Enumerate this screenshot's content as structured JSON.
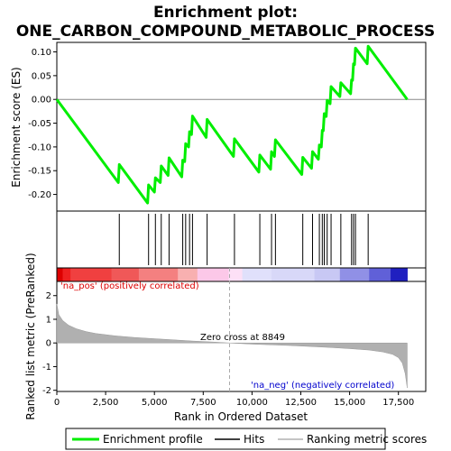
{
  "chart_data": {
    "type": "line",
    "title_line1": "Enrichment plot:",
    "title_line2": "ONE_CARBON_COMPOUND_METABOLIC_PROCESS",
    "es_ylabel": "Enrichment score (ES)",
    "rank_ylabel": "Ranked list metric (PreRanked)",
    "xlabel": "Rank in Ordered Dataset",
    "xlim": [
      0,
      18900
    ],
    "es_ylim": [
      -0.235,
      0.12
    ],
    "rank_ylim": [
      -2.05,
      2.6
    ],
    "x_ticks": [
      0,
      2500,
      5000,
      7500,
      10000,
      12500,
      15000,
      17500
    ],
    "x_tick_labels": [
      "0",
      "2,500",
      "5,000",
      "7,500",
      "10,000",
      "12,500",
      "15,000",
      "17,500"
    ],
    "es_ticks": [
      0.1,
      0.05,
      0.0,
      -0.05,
      -0.1,
      -0.15,
      -0.2
    ],
    "es_tick_labels": [
      "0.10",
      "0.05",
      "0.00",
      "-0.05",
      "-0.10",
      "-0.15",
      "-0.20"
    ],
    "rank_ticks": [
      2,
      1,
      0,
      -1,
      -2
    ],
    "rank_tick_labels": [
      "2",
      "1",
      "0",
      "-1",
      "-2"
    ],
    "hits": [
      3200,
      4700,
      5050,
      5350,
      5750,
      6450,
      6600,
      6800,
      6950,
      7700,
      9100,
      10400,
      11000,
      11200,
      12600,
      13100,
      13450,
      13600,
      13700,
      13850,
      14050,
      14550,
      15100,
      15200,
      15300,
      15950
    ],
    "es_points": [
      [
        0,
        0.0
      ],
      [
        3150,
        -0.175
      ],
      [
        3200,
        -0.137
      ],
      [
        4650,
        -0.218
      ],
      [
        4700,
        -0.18
      ],
      [
        5000,
        -0.195
      ],
      [
        5050,
        -0.165
      ],
      [
        5300,
        -0.175
      ],
      [
        5350,
        -0.14
      ],
      [
        5700,
        -0.16
      ],
      [
        5750,
        -0.123
      ],
      [
        6400,
        -0.163
      ],
      [
        6450,
        -0.128
      ],
      [
        6550,
        -0.131
      ],
      [
        6600,
        -0.093
      ],
      [
        6750,
        -0.1
      ],
      [
        6800,
        -0.068
      ],
      [
        6900,
        -0.074
      ],
      [
        6950,
        -0.035
      ],
      [
        7650,
        -0.08
      ],
      [
        7700,
        -0.042
      ],
      [
        9050,
        -0.12
      ],
      [
        9100,
        -0.083
      ],
      [
        10350,
        -0.153
      ],
      [
        10400,
        -0.117
      ],
      [
        10950,
        -0.147
      ],
      [
        11000,
        -0.11
      ],
      [
        11150,
        -0.12
      ],
      [
        11200,
        -0.085
      ],
      [
        12550,
        -0.158
      ],
      [
        12600,
        -0.122
      ],
      [
        13050,
        -0.145
      ],
      [
        13100,
        -0.11
      ],
      [
        13400,
        -0.126
      ],
      [
        13450,
        -0.096
      ],
      [
        13550,
        -0.1
      ],
      [
        13600,
        -0.065
      ],
      [
        13650,
        -0.066
      ],
      [
        13700,
        -0.03
      ],
      [
        13800,
        -0.036
      ],
      [
        13850,
        -0.002
      ],
      [
        14000,
        -0.009
      ],
      [
        14050,
        0.027
      ],
      [
        14500,
        0.006
      ],
      [
        14550,
        0.035
      ],
      [
        15050,
        0.012
      ],
      [
        15100,
        0.041
      ],
      [
        15150,
        0.04
      ],
      [
        15200,
        0.075
      ],
      [
        15250,
        0.073
      ],
      [
        15300,
        0.108
      ],
      [
        15900,
        0.075
      ],
      [
        15950,
        0.112
      ],
      [
        17950,
        0.0
      ]
    ],
    "rank_curve": [
      [
        0,
        1.65
      ],
      [
        100,
        1.2
      ],
      [
        300,
        0.95
      ],
      [
        600,
        0.75
      ],
      [
        1000,
        0.6
      ],
      [
        1500,
        0.48
      ],
      [
        2000,
        0.4
      ],
      [
        3000,
        0.3
      ],
      [
        4000,
        0.23
      ],
      [
        5000,
        0.18
      ],
      [
        6000,
        0.13
      ],
      [
        7000,
        0.08
      ],
      [
        8000,
        0.04
      ],
      [
        8849,
        0.0
      ],
      [
        10000,
        -0.05
      ],
      [
        11000,
        -0.08
      ],
      [
        12000,
        -0.11
      ],
      [
        13000,
        -0.15
      ],
      [
        14000,
        -0.19
      ],
      [
        15000,
        -0.24
      ],
      [
        16000,
        -0.3
      ],
      [
        16700,
        -0.38
      ],
      [
        17200,
        -0.48
      ],
      [
        17500,
        -0.62
      ],
      [
        17700,
        -0.85
      ],
      [
        17850,
        -1.3
      ],
      [
        17950,
        -1.9
      ]
    ],
    "zero_cross_rank": 8849,
    "zero_cross_label": "Zero cross at 8849",
    "pos_label": "'na_pos' (positively correlated)",
    "neg_label": "'na_neg' (negatively correlated)",
    "legend": {
      "placement": "bottom",
      "enrichment_label": "Enrichment profile",
      "hits_label": "Hits",
      "ranking_label": "Ranking metric scores"
    },
    "colors": {
      "enrichment": "#00ee00",
      "hits": "#000000",
      "ranking": "#b0b0b0",
      "pos_label": "#dd0000",
      "neg_label": "#0000cc",
      "zero_line": "#aaaaaa"
    },
    "heatmap_stops": [
      [
        0,
        "#dd0000"
      ],
      [
        300,
        "#ee2020"
      ],
      [
        700,
        "#f04040"
      ],
      [
        2800,
        "#f05858"
      ],
      [
        4200,
        "#f48080"
      ],
      [
        6200,
        "#f8b0b0"
      ],
      [
        7200,
        "#fcc8e8"
      ],
      [
        8800,
        "#fde0f6"
      ],
      [
        9500,
        "#e0e0fb"
      ],
      [
        11000,
        "#d8d8f8"
      ],
      [
        13200,
        "#c8c8f4"
      ],
      [
        14500,
        "#9090e6"
      ],
      [
        16000,
        "#6060d8"
      ],
      [
        17100,
        "#2020c0"
      ],
      [
        17950,
        "#0000b0"
      ]
    ]
  }
}
